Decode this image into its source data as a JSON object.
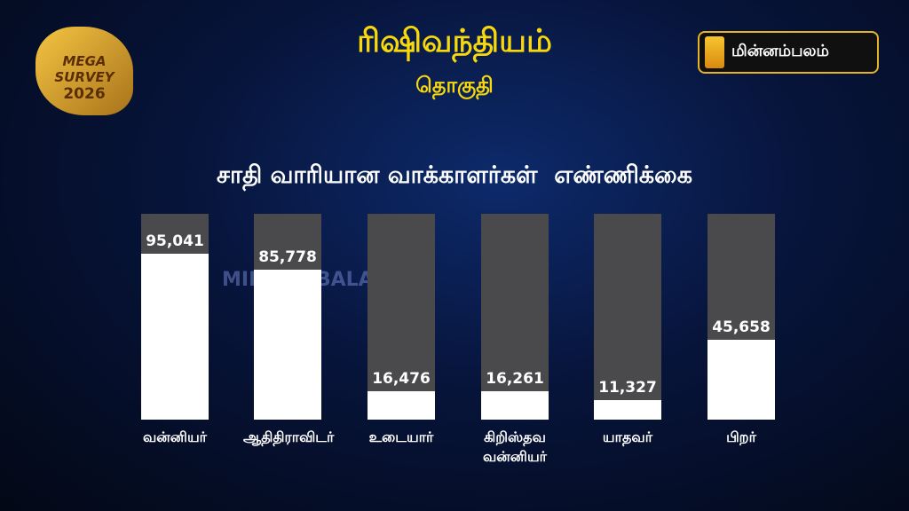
{
  "header": {
    "title": "ரிஷிவந்தியம்",
    "subtitle": "தொகுதி",
    "badge_top": "MEGA SURVEY",
    "badge_year": "2026",
    "logo": "மின்னம்பலம்",
    "watermark": "MINNAMBALAM"
  },
  "chart_data": {
    "type": "bar",
    "title": "சாதி வாரியான வாக்காளர்கள்  எண்ணிக்கை",
    "categories": [
      "வன்னியர்",
      "ஆதிதிராவிடர்",
      "உடையார்",
      "கிறிஸ்தவ வன்னியர்",
      "யாதவர்",
      "பிறர்"
    ],
    "values": [
      95041,
      85778,
      16476,
      16261,
      11327,
      45658
    ],
    "value_labels": [
      "95,041",
      "85,778",
      "16,476",
      "16,261",
      "11,327",
      "45,658"
    ],
    "color": "#ffffff",
    "track_color": "#4a4a4c"
  }
}
